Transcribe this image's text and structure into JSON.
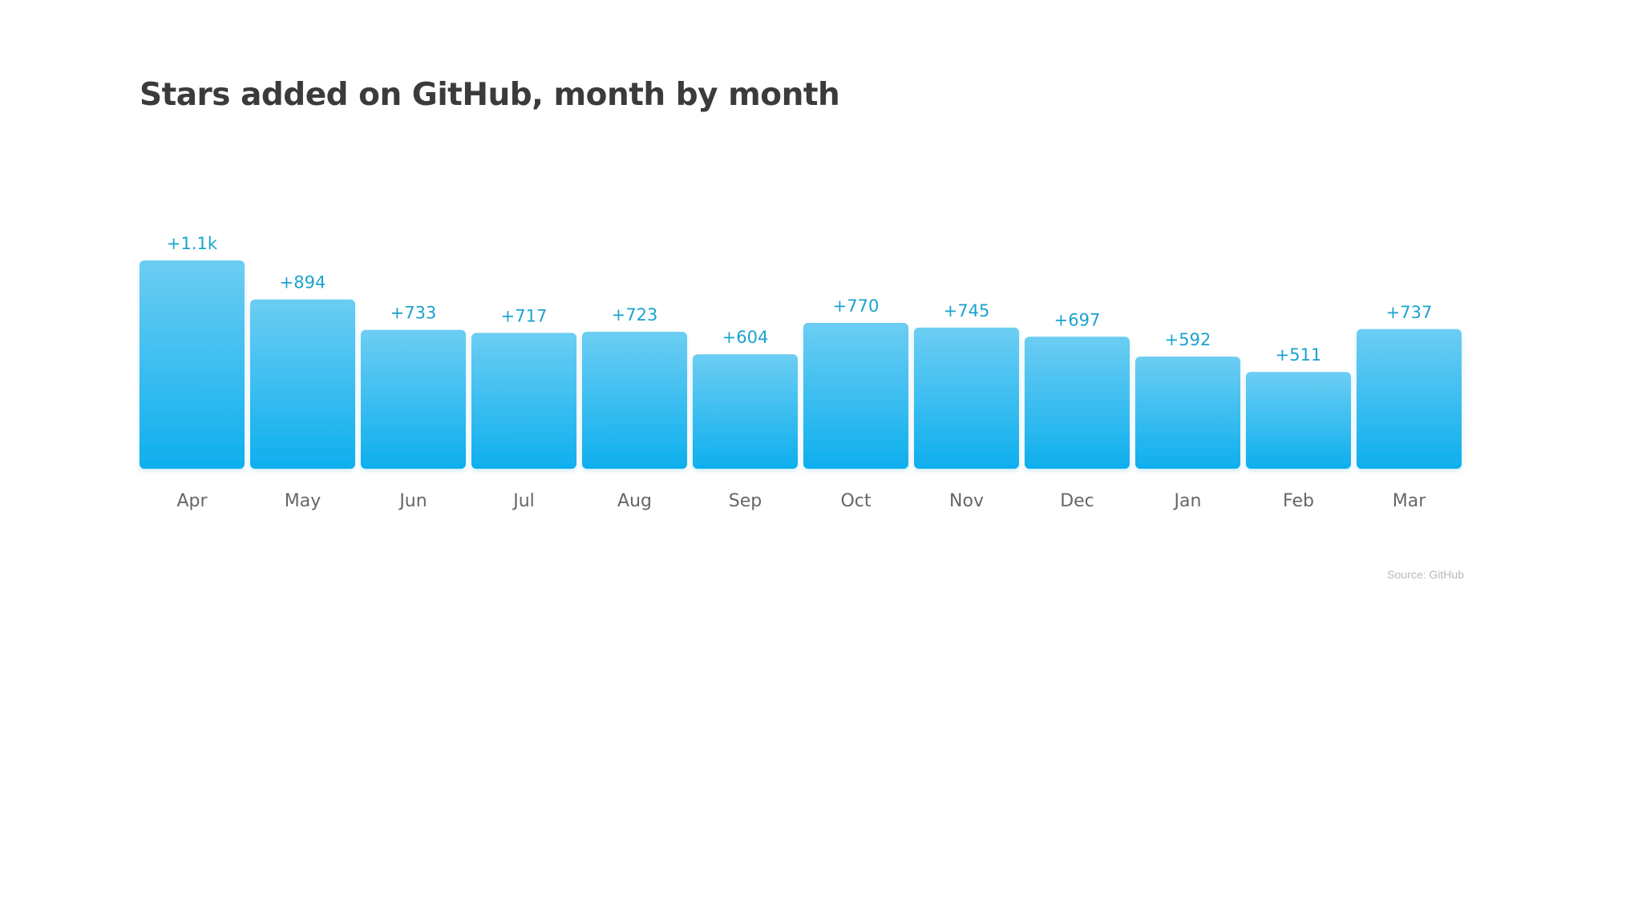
{
  "chart_data": {
    "type": "bar",
    "title": "Stars added on GitHub, month by month",
    "categories": [
      "Apr",
      "May",
      "Jun",
      "Jul",
      "Aug",
      "Sep",
      "Oct",
      "Nov",
      "Dec",
      "Jan",
      "Feb",
      "Mar"
    ],
    "values": [
      1100,
      894,
      733,
      717,
      723,
      604,
      770,
      745,
      697,
      592,
      511,
      737
    ],
    "data_labels": [
      "+1.1k",
      "+894",
      "+733",
      "+717",
      "+723",
      "+604",
      "+770",
      "+745",
      "+697",
      "+592",
      "+511",
      "+737"
    ],
    "xlabel": "",
    "ylabel": "",
    "ylim": [
      0,
      1100
    ],
    "grid": false,
    "legend": "none",
    "source": "Source: GitHub",
    "colors": {
      "bar_top": "#6ccdf3",
      "bar_bottom": "#0eafee",
      "data_label": "#1aa3cf",
      "tick_label": "#666666",
      "title": "#3b3b3b",
      "source": "#b8b8b8"
    }
  }
}
